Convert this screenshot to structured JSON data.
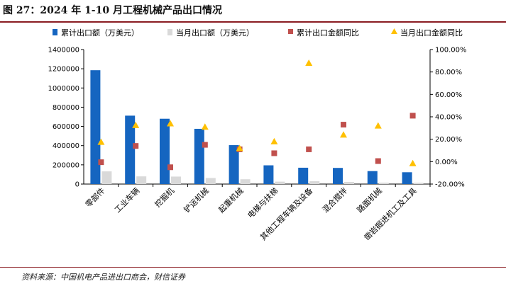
{
  "figure": {
    "title": "图 27：2024 年 1-10 月工程机械产品出口情况",
    "source": "资料来源：中国机电产品进出口商会，财信证券"
  },
  "colors": {
    "cum_bar": "#1565c0",
    "month_bar": "#d9d9d9",
    "cum_yoy": "#c0504d",
    "month_yoy": "#ffc000",
    "rule": "#8a1c22"
  },
  "chart_data": {
    "type": "bar",
    "categories": [
      "零部件",
      "工业车辆",
      "挖掘机",
      "铲运机械",
      "起重机械",
      "电梯与扶梯",
      "其他工程车辆及设备",
      "混合搅拌",
      "路面机械",
      "凿岩掘进机工及工具"
    ],
    "series": [
      {
        "name": "累计出口额（万美元）",
        "kind": "bar",
        "axis": "left",
        "values": [
          1185000,
          712000,
          680000,
          575000,
          405000,
          195000,
          170000,
          168000,
          135000,
          123000
        ]
      },
      {
        "name": "当月出口额（万美元）",
        "kind": "bar",
        "axis": "left",
        "values": [
          132000,
          80000,
          78000,
          63000,
          50000,
          25000,
          30000,
          22000,
          15000,
          14000
        ]
      },
      {
        "name": "累计出口金额同比",
        "kind": "marker",
        "marker": "square",
        "axis": "right",
        "values": [
          -0.5,
          14.0,
          -5.0,
          15.0,
          11.0,
          7.5,
          11.0,
          33.0,
          0.5,
          41.0
        ]
      },
      {
        "name": "当月出口金额同比",
        "kind": "marker",
        "marker": "triangle",
        "axis": "right",
        "values": [
          17.5,
          32.5,
          34.0,
          31.0,
          12.0,
          18.0,
          88.0,
          24.0,
          32.0,
          -1.5
        ]
      }
    ],
    "y_left": {
      "min": 0,
      "max": 1400000,
      "step": 200000,
      "ticks": [
        "0",
        "200000",
        "400000",
        "600000",
        "800000",
        "1000000",
        "1200000",
        "1400000"
      ]
    },
    "y_right": {
      "min": -20,
      "max": 100,
      "step": 20,
      "ticks": [
        "-20.00%",
        "0.00%",
        "20.00%",
        "40.00%",
        "60.00%",
        "80.00%",
        "100.00%"
      ]
    },
    "legend_position": "top",
    "grid": false
  }
}
